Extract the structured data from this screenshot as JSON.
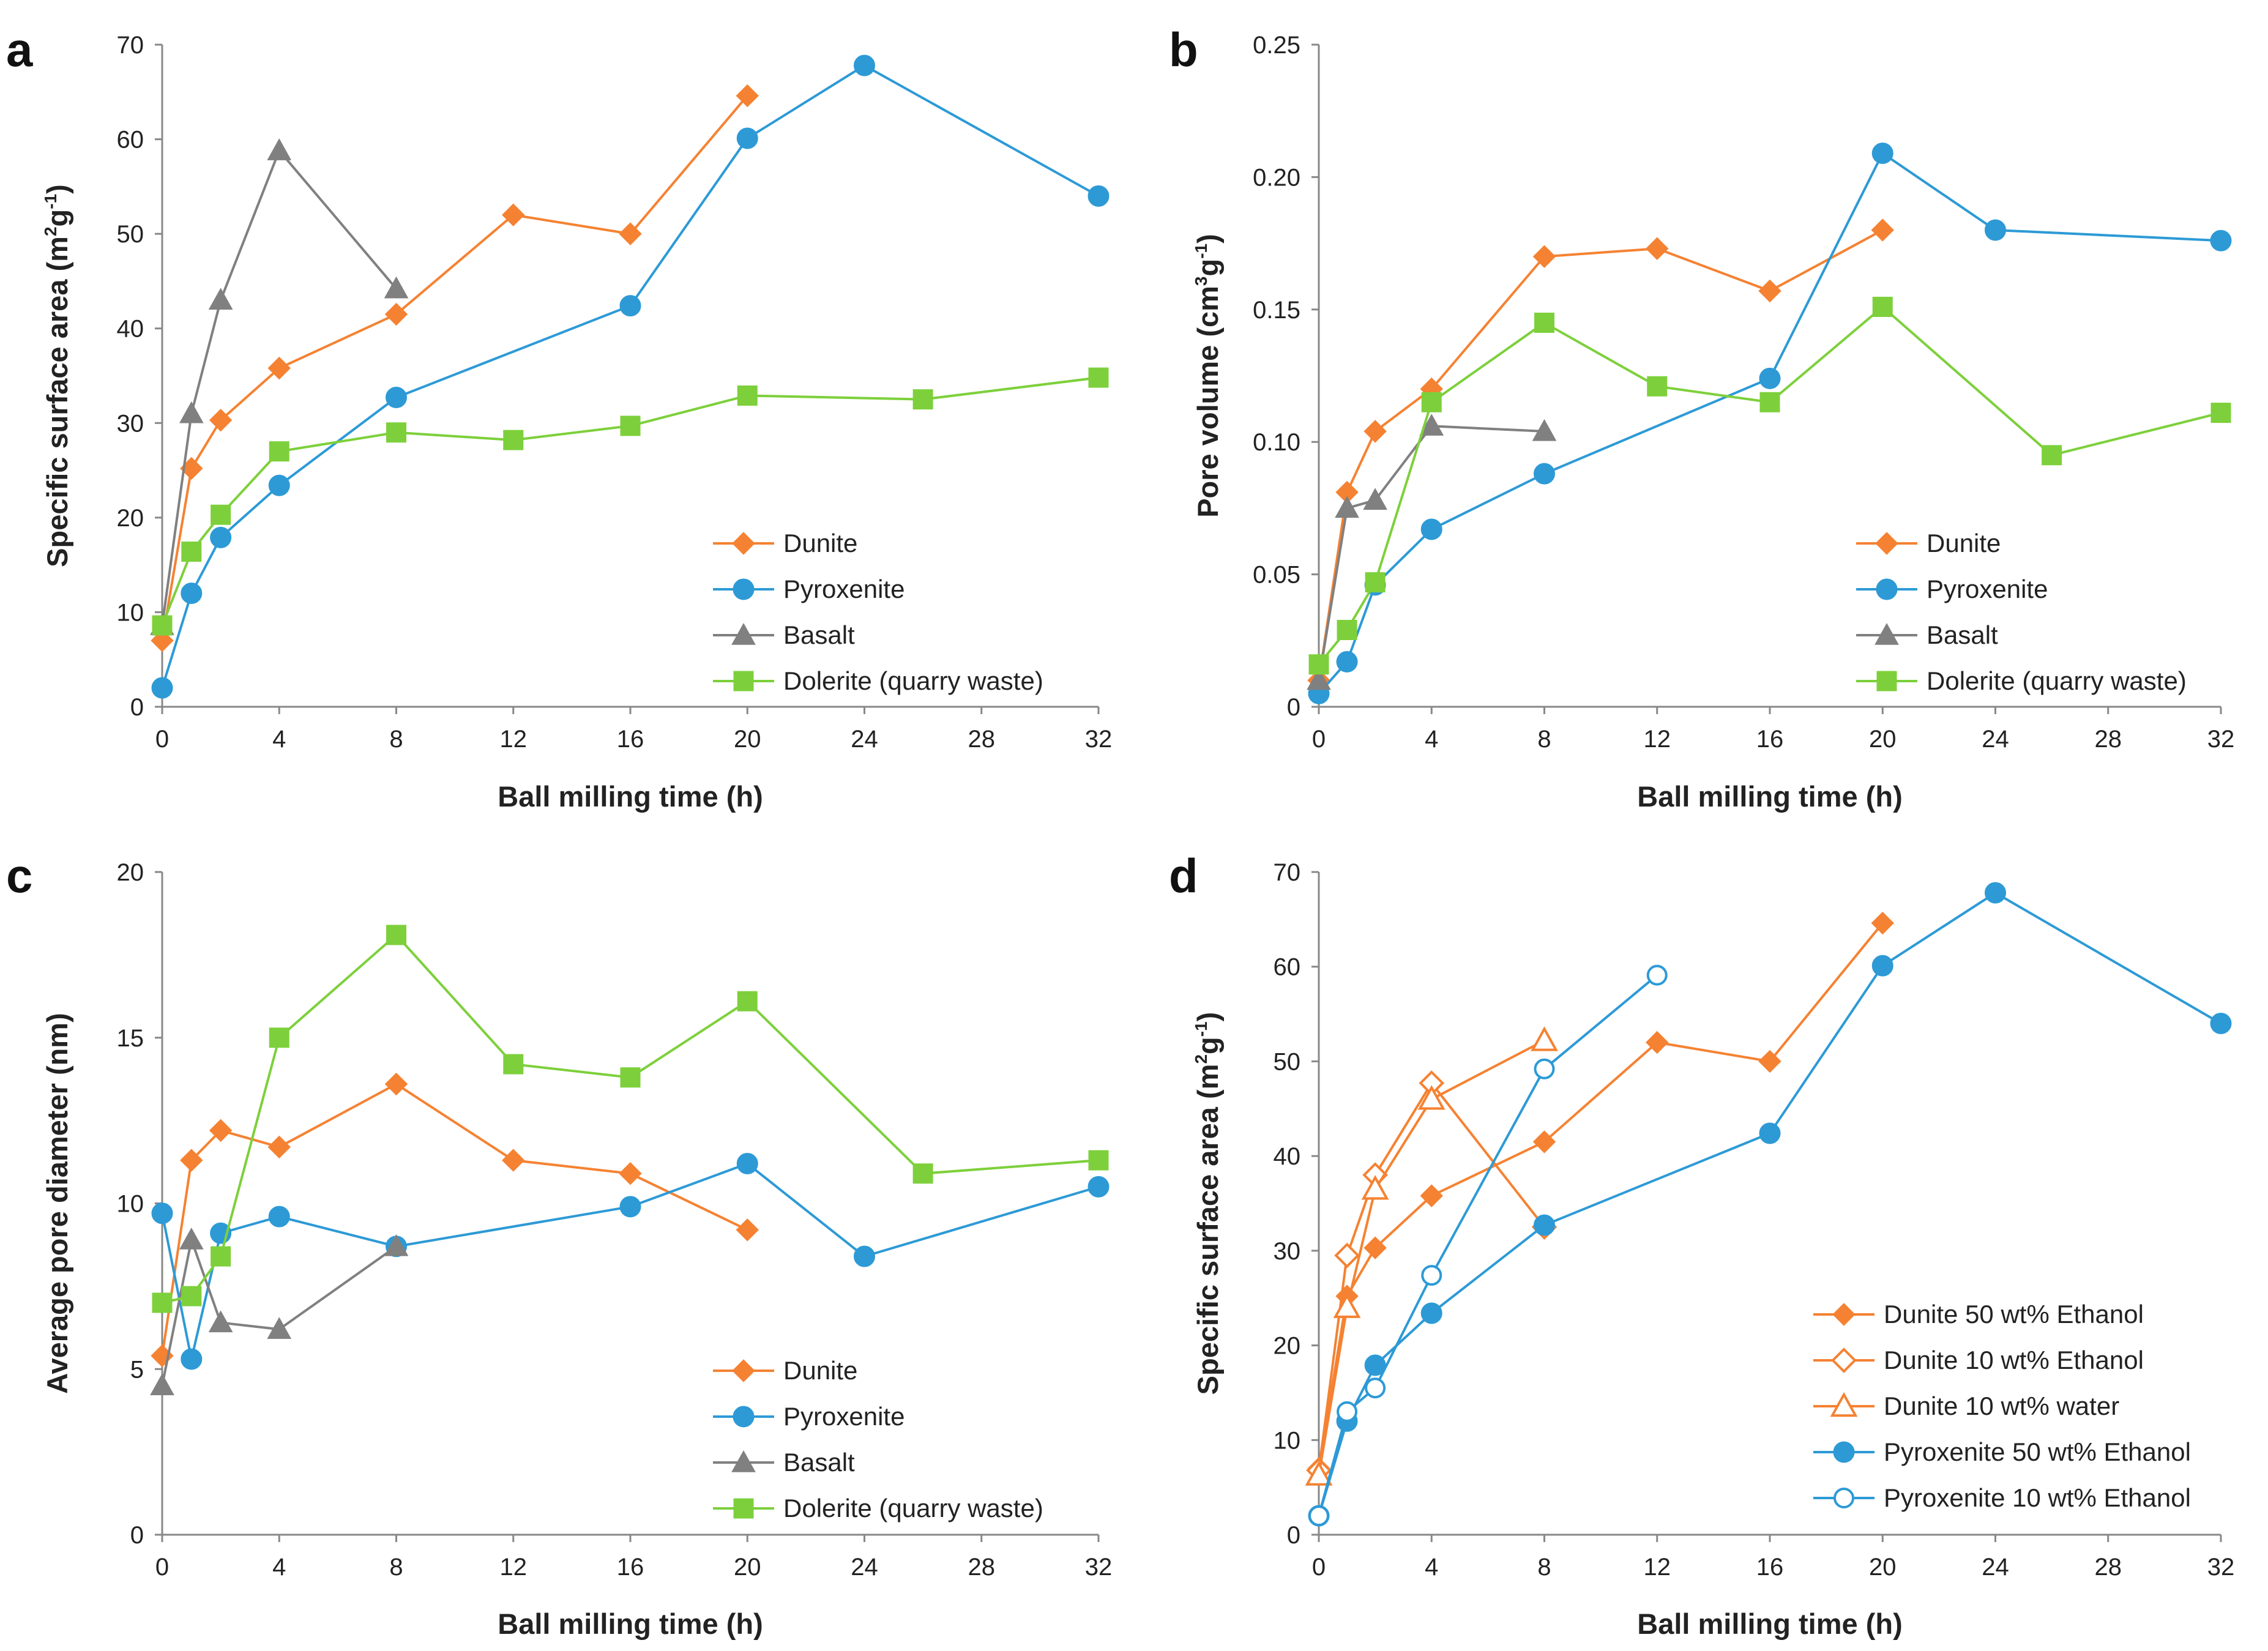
{
  "colors": {
    "orange": "#f58232",
    "blue": "#2d9ad6",
    "gray": "#808080",
    "green": "#7dd03b",
    "axis": "#888888"
  },
  "chart_data": [
    {
      "panel": "a",
      "type": "line",
      "xlabel": "Ball milling time (h)",
      "ylabel": {
        "base": "Specific surface area (m",
        "sup1": "2",
        "mid": "g",
        "sup2": "-1",
        "end": ")"
      },
      "xlim": [
        0,
        32
      ],
      "ylim": [
        0,
        70
      ],
      "xticks": [
        0,
        4,
        8,
        12,
        16,
        20,
        24,
        28,
        32
      ],
      "yticks": [
        0,
        10,
        20,
        30,
        40,
        50,
        60,
        70
      ],
      "ytick_labels": [
        "0",
        "10",
        "20",
        "30",
        "40",
        "50",
        "60",
        "70"
      ],
      "legend_position": "bottom-right",
      "series": [
        {
          "name": "Dunite",
          "color": "#f58232",
          "marker": "diamond",
          "x": [
            0,
            1,
            2,
            4,
            8,
            12,
            16,
            20
          ],
          "y": [
            7,
            25.2,
            30.3,
            35.8,
            41.5,
            52,
            50,
            64.6
          ]
        },
        {
          "name": "Pyroxenite",
          "color": "#2d9ad6",
          "marker": "circle",
          "x": [
            0,
            1,
            2,
            4,
            8,
            16,
            20,
            24,
            32
          ],
          "y": [
            2,
            12,
            17.9,
            23.4,
            32.7,
            42.4,
            60.1,
            67.8,
            54
          ]
        },
        {
          "name": "Basalt",
          "color": "#808080",
          "marker": "triangle",
          "x": [
            0,
            1,
            2,
            4,
            8
          ],
          "y": [
            8.6,
            31,
            43,
            58.8,
            44.2
          ]
        },
        {
          "name": "Dolerite (quarry waste)",
          "color": "#7dd03b",
          "marker": "square",
          "x": [
            0,
            1,
            2,
            4,
            8,
            12,
            16,
            20,
            26,
            32
          ],
          "y": [
            8.6,
            16.4,
            20.3,
            27,
            29,
            28.2,
            29.7,
            32.9,
            32.5,
            34.8
          ]
        }
      ]
    },
    {
      "panel": "b",
      "type": "line",
      "xlabel": "Ball milling time (h)",
      "ylabel": {
        "base": "Pore volume (cm",
        "sup1": "3",
        "mid": "g",
        "sup2": "-1",
        "end": ")"
      },
      "xlim": [
        0,
        32
      ],
      "ylim": [
        0,
        0.25
      ],
      "xticks": [
        0,
        4,
        8,
        12,
        16,
        20,
        24,
        28,
        32
      ],
      "yticks": [
        0,
        0.05,
        0.1,
        0.15,
        0.2,
        0.25
      ],
      "ytick_labels": [
        "0",
        "0.05",
        "0.10",
        "0.15",
        "0.20",
        "0.25"
      ],
      "legend_position": "bottom-right",
      "series": [
        {
          "name": "Dunite",
          "color": "#f58232",
          "marker": "diamond",
          "x": [
            0,
            1,
            2,
            4,
            8,
            12,
            16,
            20
          ],
          "y": [
            0.01,
            0.081,
            0.104,
            0.12,
            0.17,
            0.173,
            0.157,
            0.18
          ]
        },
        {
          "name": "Pyroxenite",
          "color": "#2d9ad6",
          "marker": "circle",
          "x": [
            0,
            1,
            2,
            4,
            8,
            16,
            20,
            24,
            32
          ],
          "y": [
            0.005,
            0.017,
            0.046,
            0.067,
            0.088,
            0.124,
            0.209,
            0.18,
            0.176
          ]
        },
        {
          "name": "Basalt",
          "color": "#808080",
          "marker": "triangle",
          "x": [
            0,
            1,
            2,
            4,
            8
          ],
          "y": [
            0.01,
            0.075,
            0.078,
            0.106,
            0.104
          ]
        },
        {
          "name": "Dolerite (quarry waste)",
          "color": "#7dd03b",
          "marker": "square",
          "x": [
            0,
            1,
            2,
            4,
            8,
            12,
            16,
            20,
            26,
            32
          ],
          "y": [
            0.016,
            0.029,
            0.047,
            0.115,
            0.145,
            0.121,
            0.115,
            0.151,
            0.095,
            0.111
          ]
        }
      ]
    },
    {
      "panel": "c",
      "type": "line",
      "xlabel": "Ball milling time (h)",
      "ylabel": {
        "base": "Average pore diameter (nm)",
        "sup1": "",
        "mid": "",
        "sup2": "",
        "end": ""
      },
      "xlim": [
        0,
        32
      ],
      "ylim": [
        0,
        20
      ],
      "xticks": [
        0,
        4,
        8,
        12,
        16,
        20,
        24,
        28,
        32
      ],
      "yticks": [
        0,
        5,
        10,
        15,
        20
      ],
      "ytick_labels": [
        "0",
        "5",
        "10",
        "15",
        "20"
      ],
      "legend_position": "bottom-right",
      "series": [
        {
          "name": "Dunite",
          "color": "#f58232",
          "marker": "diamond",
          "x": [
            0,
            1,
            2,
            4,
            8,
            12,
            16,
            20
          ],
          "y": [
            5.4,
            11.3,
            12.2,
            11.7,
            13.6,
            11.3,
            10.9,
            9.2
          ]
        },
        {
          "name": "Pyroxenite",
          "color": "#2d9ad6",
          "marker": "circle",
          "x": [
            0,
            1,
            2,
            4,
            8,
            16,
            20,
            24,
            32
          ],
          "y": [
            9.7,
            5.3,
            9.1,
            9.6,
            8.7,
            9.9,
            11.2,
            8.4,
            10.5
          ]
        },
        {
          "name": "Basalt",
          "color": "#808080",
          "marker": "triangle",
          "x": [
            0,
            1,
            2,
            4,
            8
          ],
          "y": [
            4.5,
            8.9,
            6.4,
            6.2,
            8.7
          ]
        },
        {
          "name": "Dolerite (quarry waste)",
          "color": "#7dd03b",
          "marker": "square",
          "x": [
            0,
            1,
            2,
            4,
            8,
            12,
            16,
            20,
            26,
            32
          ],
          "y": [
            7,
            7.2,
            8.4,
            15,
            18.1,
            14.2,
            13.8,
            16.1,
            10.9,
            11.3
          ]
        }
      ]
    },
    {
      "panel": "d",
      "type": "line",
      "xlabel": "Ball milling time (h)",
      "ylabel": {
        "base": "Specific surface area (m",
        "sup1": "2",
        "mid": "g",
        "sup2": "-1",
        "end": ")"
      },
      "xlim": [
        0,
        32
      ],
      "ylim": [
        0,
        70
      ],
      "xticks": [
        0,
        4,
        8,
        12,
        16,
        20,
        24,
        28,
        32
      ],
      "yticks": [
        0,
        10,
        20,
        30,
        40,
        50,
        60,
        70
      ],
      "ytick_labels": [
        "0",
        "10",
        "20",
        "30",
        "40",
        "50",
        "60",
        "70"
      ],
      "legend_position": "bottom-right",
      "series": [
        {
          "name": "Dunite 50 wt% Ethanol",
          "color": "#f58232",
          "marker": "diamond",
          "x": [
            0,
            1,
            2,
            4,
            8,
            12,
            16,
            20
          ],
          "y": [
            7,
            25.2,
            30.3,
            35.8,
            41.5,
            52,
            50,
            64.6
          ]
        },
        {
          "name": "Dunite 10 wt% Ethanol",
          "color": "#f58232",
          "marker": "diamond-open",
          "x": [
            0,
            1,
            2,
            4,
            8
          ],
          "y": [
            6.8,
            29.5,
            38,
            47.7,
            32.5
          ]
        },
        {
          "name": "Dunite 10 wt% water",
          "color": "#f58232",
          "marker": "triangle-open",
          "x": [
            0,
            1,
            2,
            4,
            8
          ],
          "y": [
            6.3,
            24,
            36.5,
            46,
            52.2
          ]
        },
        {
          "name": "Pyroxenite 50 wt% Ethanol",
          "color": "#2d9ad6",
          "marker": "circle",
          "x": [
            0,
            1,
            2,
            4,
            8,
            16,
            20,
            24,
            32
          ],
          "y": [
            2,
            12,
            17.9,
            23.4,
            32.7,
            42.4,
            60.1,
            67.8,
            54
          ]
        },
        {
          "name": "Pyroxenite 10 wt% Ethanol",
          "color": "#2d9ad6",
          "marker": "circle-open",
          "x": [
            0,
            1,
            2,
            4,
            8,
            12
          ],
          "y": [
            2,
            13,
            15.5,
            27.4,
            49.2,
            59.1
          ]
        }
      ]
    }
  ]
}
